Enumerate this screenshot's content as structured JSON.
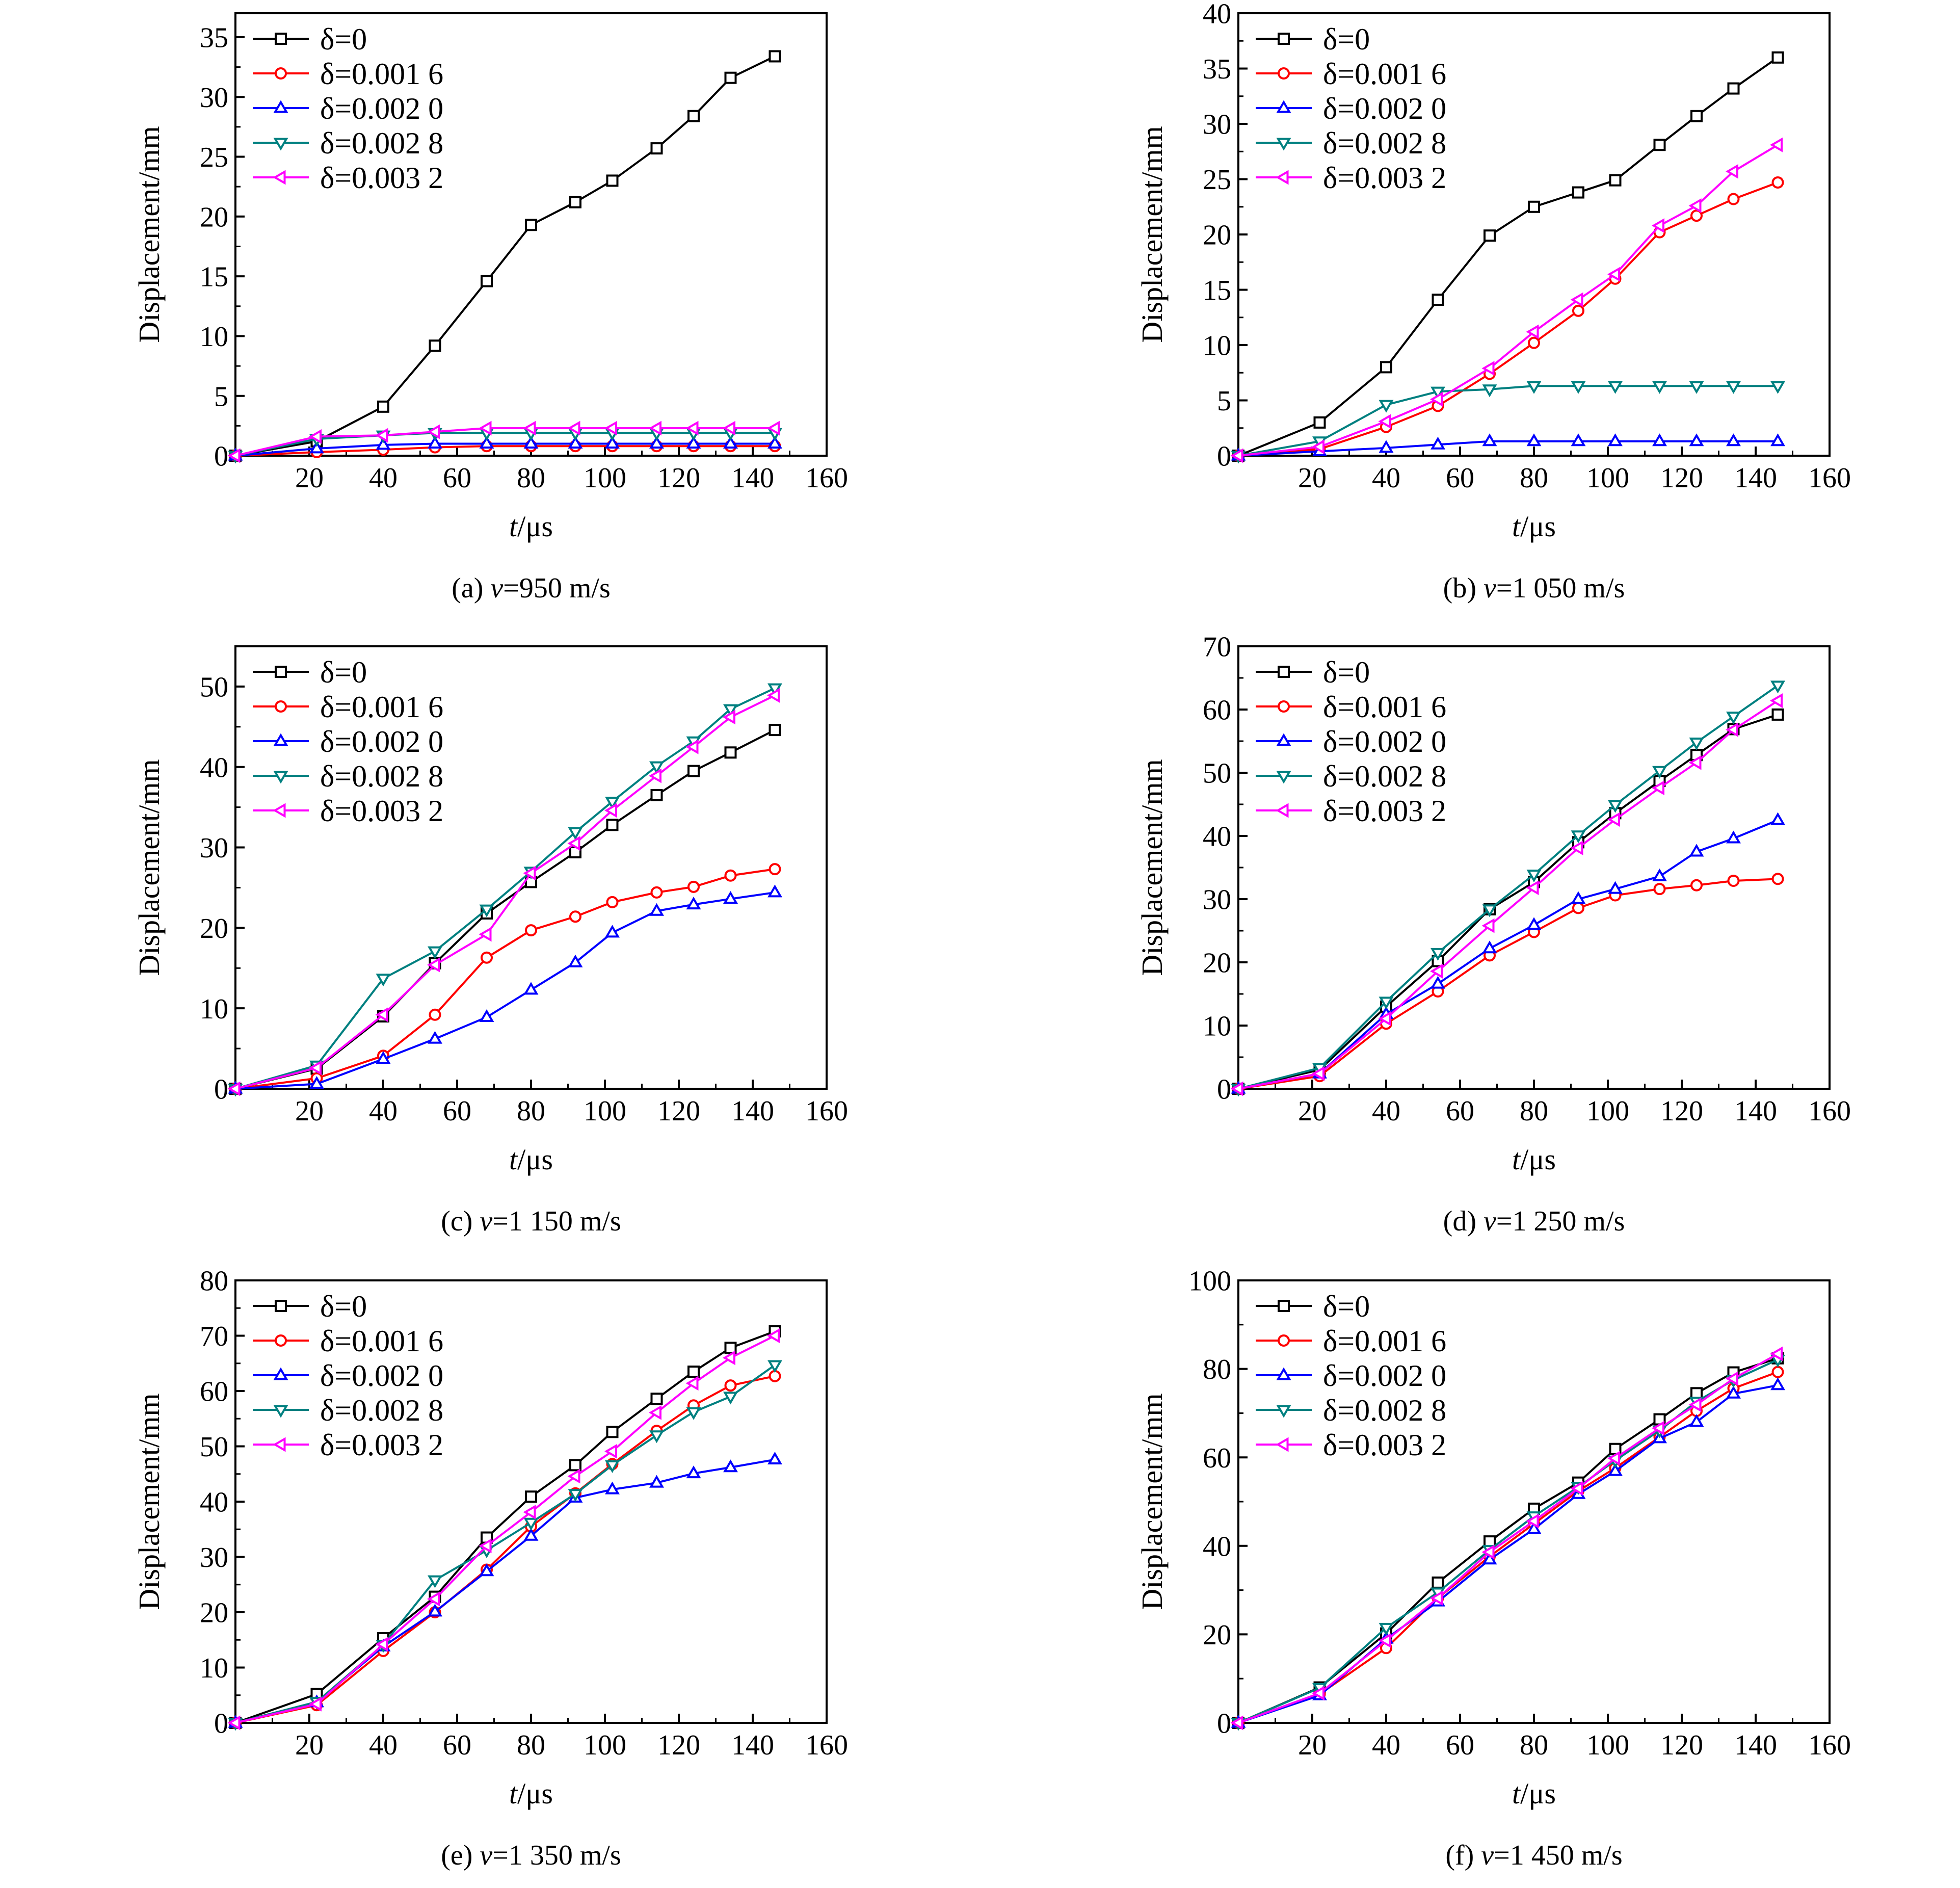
{
  "figure": {
    "common": {
      "ylabel": "Displacement/mm",
      "xlabel_italic": "t",
      "xlabel_unit": "/μs",
      "x_ticks": [
        20,
        40,
        60,
        80,
        100,
        120,
        140,
        160
      ],
      "xlim": [
        0,
        160
      ]
    },
    "legend_labels": [
      "δ=0",
      "δ=0.001 6",
      "δ=0.002 0",
      "δ=0.002 8",
      "δ=0.003 2"
    ]
  },
  "series_styles": [
    {
      "name": "δ=0",
      "color": "#000000",
      "marker": "square"
    },
    {
      "name": "δ=0.001 6",
      "color": "#ff0000",
      "marker": "circle"
    },
    {
      "name": "δ=0.002 0",
      "color": "#0000ff",
      "marker": "triangle-up"
    },
    {
      "name": "δ=0.002 8",
      "color": "#008080",
      "marker": "triangle-down"
    },
    {
      "name": "δ=0.003 2",
      "color": "#ff00ff",
      "marker": "triangle-left"
    }
  ],
  "chart_data": [
    {
      "type": "line",
      "caption_prefix": "(a) ",
      "caption_italic": "v",
      "caption_suffix": "=950 m/s",
      "xlabel": "t/μs",
      "ylabel": "Displacement/mm",
      "xlim": [
        0,
        160
      ],
      "ylim": [
        0,
        37
      ],
      "y_ticks": [
        0,
        5,
        10,
        15,
        20,
        25,
        30,
        35
      ],
      "x": [
        0,
        22,
        40,
        54,
        68,
        80,
        92,
        102,
        114,
        124,
        134,
        146
      ],
      "series": [
        {
          "name": "δ=0",
          "values": [
            0,
            1.2,
            4.1,
            9.2,
            14.6,
            19.3,
            21.2,
            23.0,
            25.7,
            28.4,
            31.6,
            33.4
          ]
        },
        {
          "name": "δ=0.001 6",
          "values": [
            0,
            0.3,
            0.5,
            0.7,
            0.8,
            0.8,
            0.8,
            0.8,
            0.8,
            0.8,
            0.8,
            0.8
          ]
        },
        {
          "name": "δ=0.002 0",
          "values": [
            0,
            0.6,
            0.9,
            1.0,
            1.0,
            1.0,
            1.0,
            1.0,
            1.0,
            1.0,
            1.0,
            1.0
          ]
        },
        {
          "name": "δ=0.002 8",
          "values": [
            0,
            1.4,
            1.7,
            1.9,
            1.9,
            1.9,
            1.9,
            1.9,
            1.9,
            1.9,
            1.9,
            1.9
          ]
        },
        {
          "name": "δ=0.003 2",
          "values": [
            0,
            1.6,
            1.7,
            2.0,
            2.3,
            2.3,
            2.3,
            2.3,
            2.3,
            2.3,
            2.3,
            2.3
          ]
        }
      ]
    },
    {
      "type": "line",
      "caption_prefix": "(b) ",
      "caption_italic": "v",
      "caption_suffix": "=1 050 m/s",
      "xlabel": "t/μs",
      "ylabel": "Displacement/mm",
      "xlim": [
        0,
        160
      ],
      "ylim": [
        0,
        40
      ],
      "y_ticks": [
        0,
        5,
        10,
        15,
        20,
        25,
        30,
        35,
        40
      ],
      "x": [
        0,
        22,
        40,
        54,
        68,
        80,
        92,
        102,
        114,
        124,
        134,
        146
      ],
      "series": [
        {
          "name": "δ=0",
          "values": [
            0,
            3.0,
            8.0,
            14.1,
            19.9,
            22.5,
            23.8,
            24.9,
            28.1,
            30.7,
            33.2,
            36.0
          ]
        },
        {
          "name": "δ=0.001 6",
          "values": [
            0,
            0.6,
            2.6,
            4.5,
            7.4,
            10.2,
            13.1,
            16.0,
            20.2,
            21.7,
            23.2,
            24.7
          ]
        },
        {
          "name": "δ=0.002 0",
          "values": [
            0,
            0.4,
            0.7,
            1.0,
            1.3,
            1.3,
            1.3,
            1.3,
            1.3,
            1.3,
            1.3,
            1.3
          ]
        },
        {
          "name": "δ=0.002 8",
          "values": [
            0,
            1.3,
            4.6,
            5.8,
            6.0,
            6.3,
            6.3,
            6.3,
            6.3,
            6.3,
            6.3,
            6.3
          ]
        },
        {
          "name": "δ=0.003 2",
          "values": [
            0,
            0.8,
            3.1,
            5.1,
            7.9,
            11.2,
            14.1,
            16.4,
            20.8,
            22.6,
            25.7,
            28.1
          ]
        }
      ]
    },
    {
      "type": "line",
      "caption_prefix": "(c) ",
      "caption_italic": "v",
      "caption_suffix": "=1 150 m/s",
      "xlabel": "t/μs",
      "ylabel": "Displacement/mm",
      "xlim": [
        0,
        160
      ],
      "ylim": [
        0,
        55
      ],
      "y_ticks": [
        0,
        10,
        20,
        30,
        40,
        50
      ],
      "x": [
        0,
        22,
        40,
        54,
        68,
        80,
        92,
        102,
        114,
        124,
        134,
        146
      ],
      "series": [
        {
          "name": "δ=0",
          "values": [
            0,
            2.5,
            9.0,
            15.6,
            21.8,
            25.7,
            29.4,
            32.8,
            36.5,
            39.5,
            41.8,
            44.6
          ]
        },
        {
          "name": "δ=0.001 6",
          "values": [
            0,
            1.3,
            4.1,
            9.2,
            16.3,
            19.7,
            21.4,
            23.2,
            24.4,
            25.1,
            26.5,
            27.3
          ]
        },
        {
          "name": "δ=0.002 0",
          "values": [
            0,
            0.6,
            3.7,
            6.2,
            8.9,
            12.3,
            15.7,
            19.4,
            22.1,
            22.9,
            23.6,
            24.4
          ]
        },
        {
          "name": "δ=0.002 8",
          "values": [
            0,
            2.9,
            13.7,
            17.1,
            22.3,
            27.0,
            31.9,
            35.7,
            40.1,
            43.2,
            47.2,
            49.8
          ]
        },
        {
          "name": "δ=0.003 2",
          "values": [
            0,
            2.6,
            9.2,
            15.4,
            19.2,
            26.8,
            30.5,
            34.6,
            38.9,
            42.5,
            46.2,
            48.9
          ]
        }
      ]
    },
    {
      "type": "line",
      "caption_prefix": "(d) ",
      "caption_italic": "v",
      "caption_suffix": "=1 250 m/s",
      "xlabel": "t/μs",
      "ylabel": "Displacement/mm",
      "xlim": [
        0,
        160
      ],
      "ylim": [
        0,
        70
      ],
      "y_ticks": [
        0,
        10,
        20,
        30,
        40,
        50,
        60,
        70
      ],
      "x": [
        0,
        22,
        40,
        54,
        68,
        80,
        92,
        102,
        114,
        124,
        134,
        146
      ],
      "series": [
        {
          "name": "δ=0",
          "values": [
            0,
            3.0,
            13.0,
            20.2,
            28.4,
            32.7,
            39.0,
            43.6,
            48.7,
            52.8,
            56.9,
            59.2
          ]
        },
        {
          "name": "δ=0.001 6",
          "values": [
            0,
            2.0,
            10.3,
            15.4,
            21.1,
            24.8,
            28.6,
            30.6,
            31.6,
            32.2,
            32.9,
            33.2
          ]
        },
        {
          "name": "δ=0.002 0",
          "values": [
            0,
            2.4,
            11.8,
            16.6,
            22.2,
            25.9,
            30.0,
            31.6,
            33.6,
            37.5,
            39.6,
            42.5
          ]
        },
        {
          "name": "δ=0.002 8",
          "values": [
            0,
            3.3,
            13.8,
            21.5,
            28.4,
            33.9,
            40.1,
            44.9,
            50.3,
            54.8,
            58.9,
            63.8
          ]
        },
        {
          "name": "δ=0.003 2",
          "values": [
            0,
            2.4,
            11.1,
            18.6,
            25.8,
            31.8,
            38.1,
            42.6,
            47.6,
            51.6,
            56.8,
            61.4
          ]
        }
      ]
    },
    {
      "type": "line",
      "caption_prefix": "(e) ",
      "caption_italic": "v",
      "caption_suffix": "=1 350 m/s",
      "xlabel": "t/μs",
      "ylabel": "Displacement/mm",
      "xlim": [
        0,
        160
      ],
      "ylim": [
        0,
        80
      ],
      "y_ticks": [
        0,
        10,
        20,
        30,
        40,
        50,
        60,
        70,
        80
      ],
      "x": [
        0,
        22,
        40,
        54,
        68,
        80,
        92,
        102,
        114,
        124,
        134,
        146
      ],
      "series": [
        {
          "name": "δ=0",
          "values": [
            0,
            5.2,
            15.3,
            22.8,
            33.5,
            40.9,
            46.6,
            52.6,
            58.6,
            63.5,
            67.8,
            70.8
          ]
        },
        {
          "name": "δ=0.001 6",
          "values": [
            0,
            3.2,
            13.0,
            20.0,
            27.7,
            35.5,
            41.5,
            46.8,
            52.8,
            57.4,
            61.0,
            62.7
          ]
        },
        {
          "name": "δ=0.002 0",
          "values": [
            0,
            3.7,
            13.8,
            20.1,
            27.4,
            33.8,
            40.7,
            42.2,
            43.4,
            45.1,
            46.2,
            47.6
          ]
        },
        {
          "name": "δ=0.002 8",
          "values": [
            0,
            3.8,
            14.1,
            25.8,
            31.2,
            36.2,
            41.4,
            46.6,
            52.0,
            56.2,
            59.0,
            64.7
          ]
        },
        {
          "name": "δ=0.003 2",
          "values": [
            0,
            3.4,
            14.2,
            22.4,
            32.0,
            38.1,
            44.6,
            49.1,
            56.1,
            61.4,
            66.0,
            70.0
          ]
        }
      ]
    },
    {
      "type": "line",
      "caption_prefix": "(f) ",
      "caption_italic": "v",
      "caption_suffix": "=1 450 m/s",
      "xlabel": "t/μs",
      "ylabel": "Displacement/mm",
      "xlim": [
        0,
        160
      ],
      "ylim": [
        0,
        100
      ],
      "y_ticks": [
        0,
        20,
        40,
        60,
        80,
        100
      ],
      "x": [
        0,
        22,
        40,
        54,
        68,
        80,
        92,
        102,
        114,
        124,
        134,
        146
      ],
      "series": [
        {
          "name": "δ=0",
          "values": [
            0,
            8.0,
            20.2,
            31.7,
            41.0,
            48.4,
            54.3,
            61.9,
            68.6,
            74.5,
            79.2,
            82.4
          ]
        },
        {
          "name": "δ=0.001 6",
          "values": [
            0,
            6.5,
            16.9,
            28.2,
            37.6,
            45.0,
            52.4,
            57.6,
            64.6,
            70.5,
            75.6,
            79.3
          ]
        },
        {
          "name": "δ=0.002 0",
          "values": [
            0,
            6.2,
            19.0,
            27.4,
            36.9,
            43.8,
            51.7,
            56.9,
            64.3,
            68.0,
            74.4,
            76.3
          ]
        },
        {
          "name": "δ=0.002 8",
          "values": [
            0,
            7.9,
            21.5,
            29.5,
            39.1,
            46.7,
            53.3,
            59.3,
            66.1,
            72.6,
            77.5,
            82.1
          ]
        },
        {
          "name": "δ=0.003 2",
          "values": [
            0,
            6.7,
            18.6,
            28.2,
            38.6,
            45.6,
            53.0,
            59.8,
            66.6,
            71.9,
            77.8,
            83.4
          ]
        }
      ]
    }
  ]
}
